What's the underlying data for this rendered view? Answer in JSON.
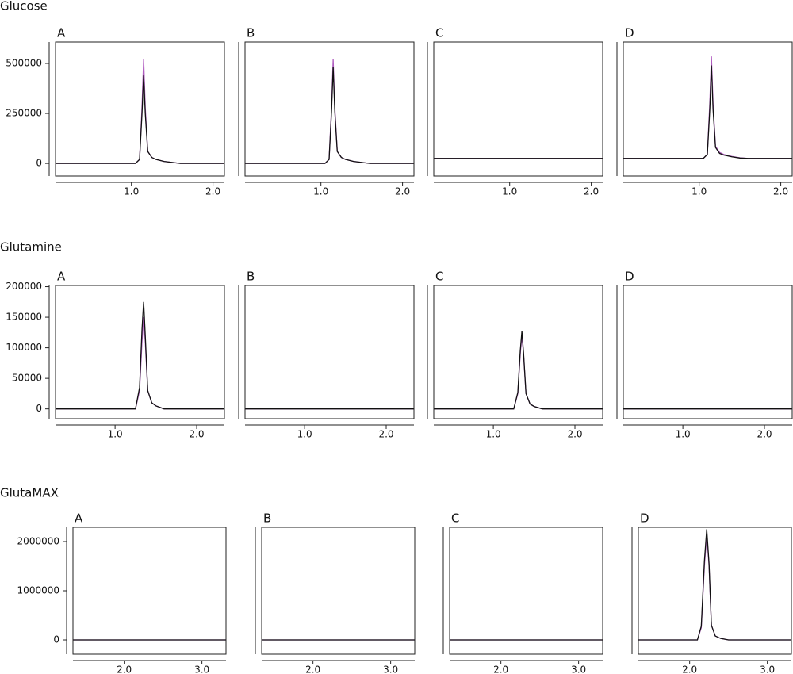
{
  "panel_groups": [
    {
      "title": "Glucose",
      "chart_data": [
        {
          "type": "line",
          "title": "A",
          "x": [
            0.07,
            1.05,
            1.1,
            1.13,
            1.15,
            1.17,
            1.2,
            1.25,
            1.3,
            1.4,
            1.5,
            1.6,
            2.14
          ],
          "series": [
            {
              "color": "#b05cc0",
              "values": [
                0,
                0,
                20000,
                280000,
                520000,
                280000,
                60000,
                30000,
                20000,
                10000,
                5000,
                0,
                0
              ]
            },
            {
              "color": "#111111",
              "values": [
                0,
                0,
                20000,
                250000,
                440000,
                250000,
                60000,
                30000,
                20000,
                10000,
                5000,
                0,
                0
              ]
            }
          ],
          "xlim": [
            0.07,
            2.14
          ],
          "xticks": [
            {
              "value": 1,
              "label": "1.0"
            },
            {
              "value": 2,
              "label": "2.0"
            }
          ],
          "ylim": [
            -63000,
            607000
          ],
          "yticks": [
            0,
            250000,
            500000
          ]
        },
        {
          "type": "line",
          "title": "B",
          "x": [
            0.07,
            1.05,
            1.1,
            1.13,
            1.15,
            1.17,
            1.2,
            1.25,
            1.3,
            1.4,
            1.5,
            1.6,
            2.14
          ],
          "series": [
            {
              "color": "#b05cc0",
              "values": [
                0,
                0,
                20000,
                280000,
                520000,
                280000,
                60000,
                30000,
                20000,
                10000,
                5000,
                0,
                0
              ]
            },
            {
              "color": "#111111",
              "values": [
                0,
                0,
                20000,
                260000,
                480000,
                260000,
                60000,
                30000,
                20000,
                10000,
                5000,
                0,
                0
              ]
            }
          ],
          "xlim": [
            0.07,
            2.14
          ],
          "xticks": [
            {
              "value": 1,
              "label": "1.0"
            },
            {
              "value": 2,
              "label": "2.0"
            }
          ],
          "ylim": [
            -63000,
            607000
          ]
        },
        {
          "type": "line",
          "title": "C",
          "x": [
            0.07,
            2.14
          ],
          "series": [
            {
              "color": "#b05cc0",
              "values": [
                25000,
                25000
              ]
            },
            {
              "color": "#111111",
              "values": [
                25000,
                25000
              ]
            }
          ],
          "xlim": [
            0.07,
            2.14
          ],
          "xticks": [
            {
              "value": 1,
              "label": "1.0"
            },
            {
              "value": 2,
              "label": "2.0"
            }
          ],
          "ylim": [
            -63000,
            607000
          ]
        },
        {
          "type": "line",
          "title": "D",
          "x": [
            0.07,
            1.05,
            1.1,
            1.13,
            1.15,
            1.17,
            1.2,
            1.25,
            1.3,
            1.4,
            1.5,
            1.6,
            2.14
          ],
          "series": [
            {
              "color": "#b05cc0",
              "values": [
                25000,
                25000,
                45000,
                300000,
                535000,
                300000,
                85000,
                55000,
                45000,
                35000,
                28000,
                25000,
                25000
              ]
            },
            {
              "color": "#111111",
              "values": [
                25000,
                25000,
                45000,
                270000,
                490000,
                270000,
                80000,
                50000,
                42000,
                33000,
                27000,
                25000,
                25000
              ]
            }
          ],
          "xlim": [
            0.07,
            2.14
          ],
          "xticks": [
            {
              "value": 1,
              "label": "1.0"
            },
            {
              "value": 2,
              "label": "2.0"
            }
          ],
          "ylim": [
            -63000,
            607000
          ]
        }
      ]
    },
    {
      "title": "Glutamine",
      "chart_data": [
        {
          "type": "line",
          "title": "A",
          "x": [
            0.27,
            1.25,
            1.3,
            1.33,
            1.35,
            1.37,
            1.4,
            1.45,
            1.5,
            1.6,
            2.34
          ],
          "series": [
            {
              "color": "#b05cc0",
              "values": [
                0,
                0,
                30000,
                110000,
                150000,
                110000,
                30000,
                10000,
                5000,
                0,
                0
              ]
            },
            {
              "color": "#111111",
              "values": [
                0,
                0,
                35000,
                130000,
                175000,
                120000,
                30000,
                10000,
                5000,
                0,
                0
              ]
            }
          ],
          "xlim": [
            0.27,
            2.34
          ],
          "xticks": [
            {
              "value": 1,
              "label": "1.0"
            },
            {
              "value": 2,
              "label": "2.0"
            }
          ],
          "ylim": [
            -16000,
            202000
          ],
          "yticks": [
            0,
            50000,
            100000,
            150000,
            200000
          ]
        },
        {
          "type": "line",
          "title": "B",
          "x": [
            0.27,
            2.34
          ],
          "series": [
            {
              "color": "#b05cc0",
              "values": [
                0,
                0
              ]
            },
            {
              "color": "#111111",
              "values": [
                0,
                0
              ]
            }
          ],
          "xlim": [
            0.27,
            2.34
          ],
          "xticks": [
            {
              "value": 1,
              "label": "1.0"
            },
            {
              "value": 2,
              "label": "2.0"
            }
          ],
          "ylim": [
            -16000,
            202000
          ]
        },
        {
          "type": "line",
          "title": "C",
          "x": [
            0.27,
            1.25,
            1.3,
            1.33,
            1.35,
            1.37,
            1.4,
            1.45,
            1.5,
            1.6,
            2.34
          ],
          "series": [
            {
              "color": "#b05cc0",
              "values": [
                0,
                0,
                25000,
                90000,
                120000,
                90000,
                25000,
                8000,
                4000,
                0,
                0
              ]
            },
            {
              "color": "#111111",
              "values": [
                0,
                0,
                27000,
                95000,
                127000,
                92000,
                25000,
                8000,
                4000,
                0,
                0
              ]
            }
          ],
          "xlim": [
            0.27,
            2.34
          ],
          "xticks": [
            {
              "value": 1,
              "label": "1.0"
            },
            {
              "value": 2,
              "label": "2.0"
            }
          ],
          "ylim": [
            -16000,
            202000
          ]
        },
        {
          "type": "line",
          "title": "D",
          "x": [
            0.27,
            2.34
          ],
          "series": [
            {
              "color": "#b05cc0",
              "values": [
                0,
                0
              ]
            },
            {
              "color": "#111111",
              "values": [
                0,
                0
              ]
            }
          ],
          "xlim": [
            0.27,
            2.34
          ],
          "xticks": [
            {
              "value": 1,
              "label": "1.0"
            },
            {
              "value": 2,
              "label": "2.0"
            }
          ],
          "ylim": [
            -16000,
            202000
          ]
        }
      ]
    },
    {
      "title": "GlutaMAX",
      "chart_data": [
        {
          "type": "line",
          "title": "A",
          "x": [
            1.34,
            3.31
          ],
          "series": [
            {
              "color": "#b05cc0",
              "values": [
                0,
                0
              ]
            },
            {
              "color": "#111111",
              "values": [
                0,
                0
              ]
            }
          ],
          "xlim": [
            1.34,
            3.31
          ],
          "xticks": [
            {
              "value": 2,
              "label": "2.0"
            },
            {
              "value": 3,
              "label": "3.0"
            }
          ],
          "ylim": [
            -290000,
            2290000
          ],
          "yticks": [
            0,
            1000000,
            2000000
          ]
        },
        {
          "type": "line",
          "title": "B",
          "x": [
            1.34,
            3.31
          ],
          "series": [
            {
              "color": "#b05cc0",
              "values": [
                0,
                0
              ]
            },
            {
              "color": "#111111",
              "values": [
                0,
                0
              ]
            }
          ],
          "xlim": [
            1.34,
            3.31
          ],
          "xticks": [
            {
              "value": 2,
              "label": "2.0"
            },
            {
              "value": 3,
              "label": "3.0"
            }
          ],
          "ylim": [
            -290000,
            2290000
          ]
        },
        {
          "type": "line",
          "title": "C",
          "x": [
            1.34,
            3.31
          ],
          "series": [
            {
              "color": "#b05cc0",
              "values": [
                0,
                0
              ]
            },
            {
              "color": "#111111",
              "values": [
                0,
                0
              ]
            }
          ],
          "xlim": [
            1.34,
            3.31
          ],
          "xticks": [
            {
              "value": 2,
              "label": "2.0"
            },
            {
              "value": 3,
              "label": "3.0"
            }
          ],
          "ylim": [
            -290000,
            2290000
          ]
        },
        {
          "type": "line",
          "title": "D",
          "x": [
            1.34,
            2.1,
            2.15,
            2.19,
            2.22,
            2.25,
            2.28,
            2.33,
            2.4,
            2.5,
            3.31
          ],
          "series": [
            {
              "color": "#b05cc0",
              "values": [
                0,
                0,
                250000,
                1500000,
                2150000,
                1500000,
                300000,
                80000,
                30000,
                0,
                0
              ]
            },
            {
              "color": "#111111",
              "values": [
                0,
                0,
                280000,
                1600000,
                2250000,
                1550000,
                300000,
                80000,
                30000,
                0,
                0
              ]
            }
          ],
          "xlim": [
            1.34,
            3.31
          ],
          "xticks": [
            {
              "value": 2,
              "label": "2.0"
            },
            {
              "value": 3,
              "label": "3.0"
            }
          ],
          "ylim": [
            -290000,
            2290000
          ]
        }
      ]
    }
  ]
}
